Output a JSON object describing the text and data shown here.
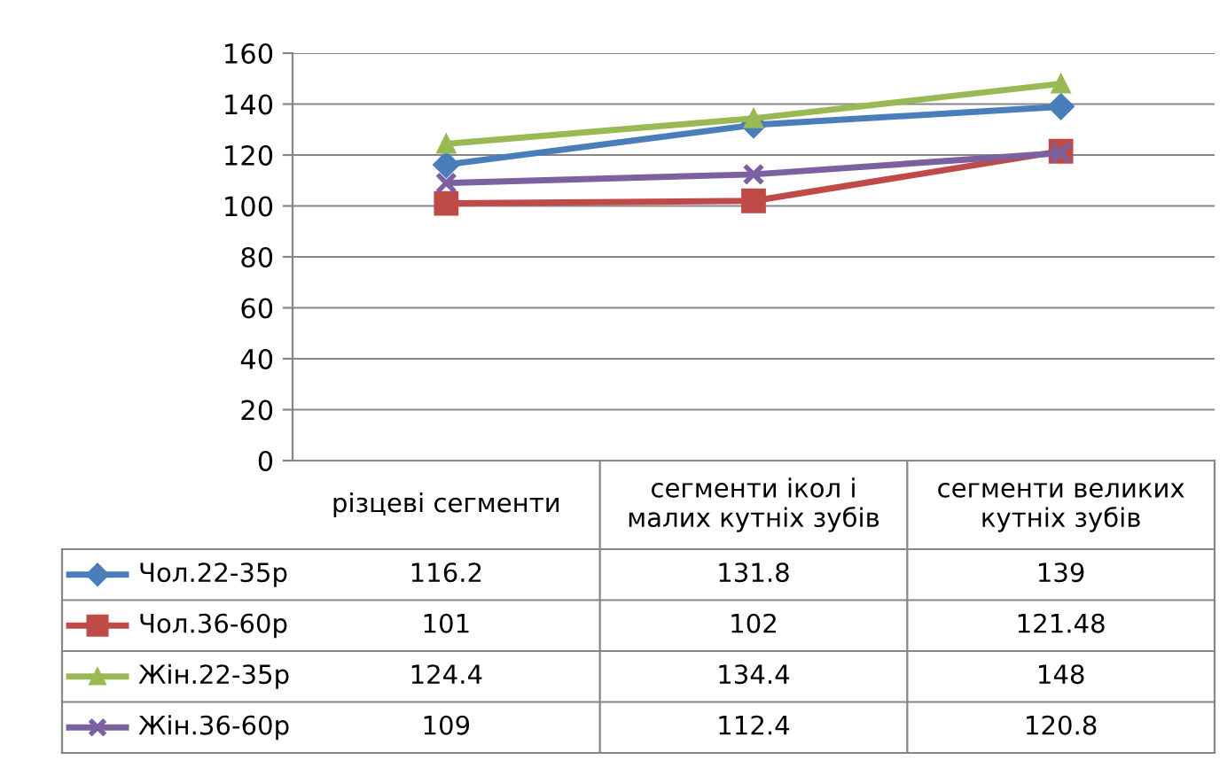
{
  "chart_data": {
    "type": "line",
    "categories": [
      "різцеві сегменти",
      "сегменти ікол і\nмалих кутніх зубів",
      "сегменти великих\nкутніх зубів"
    ],
    "series": [
      {
        "name": "Чол.22-35р",
        "color": "#4a7ebb",
        "marker": "diamond",
        "values": [
          116.2,
          131.8,
          139
        ]
      },
      {
        "name": "Чол.36-60р",
        "color": "#be4b48",
        "marker": "square",
        "values": [
          101,
          102,
          121.48
        ]
      },
      {
        "name": "Жін.22-35р",
        "color": "#98b954",
        "marker": "triangle",
        "values": [
          124.4,
          134.4,
          148
        ]
      },
      {
        "name": "Жін.36-60р",
        "color": "#7d60a0",
        "marker": "cross",
        "values": [
          109,
          112.4,
          120.8
        ]
      }
    ],
    "ylim": [
      0,
      160
    ],
    "yticks": [
      0,
      20,
      40,
      60,
      80,
      100,
      120,
      140,
      160
    ],
    "grid": "y",
    "legend": "bottom",
    "data_labels": true
  }
}
